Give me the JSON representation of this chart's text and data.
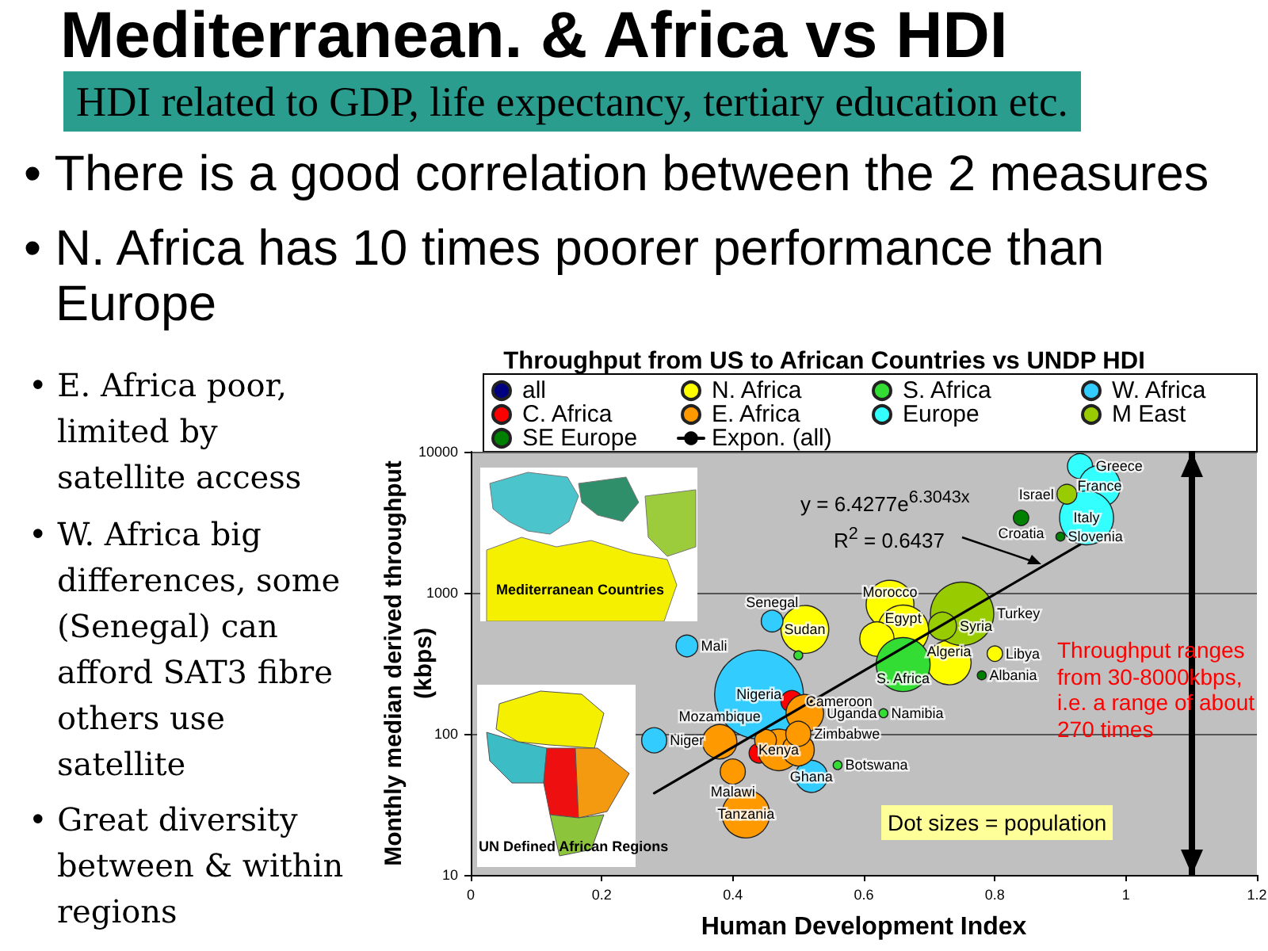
{
  "chart_data": {
    "type": "bubble",
    "title": "Throughput from US to African Countries vs UNDP HDI",
    "xlabel": "Human Development Index",
    "ylabel": "Monthly median derived throughput\n(kbps)",
    "xlim": [
      0,
      1.2
    ],
    "xticks": [
      0,
      0.2,
      0.4,
      0.6,
      0.8,
      1,
      1.2
    ],
    "ylim": [
      10,
      10000
    ],
    "yticks": [
      10,
      100,
      1000,
      10000
    ],
    "log": "y",
    "grid": "y",
    "legend": "top",
    "marker": "circle",
    "line_style": "solid",
    "series": [
      {
        "name": "all",
        "color": "#000080"
      },
      {
        "name": "N. Africa",
        "color": "#ffff00",
        "x": [
          0.64,
          0.66,
          0.62,
          0.73,
          0.8,
          0.51
        ],
        "values": [
          830,
          540,
          470,
          320,
          370,
          550
        ],
        "sizes": [
          0.29,
          0.33,
          0.15,
          0.25,
          0.03,
          0.29
        ]
      },
      {
        "name": "S. Africa",
        "color": "#33dd33",
        "x": [
          0.66,
          0.63,
          0.56,
          0.5
        ],
        "values": [
          310,
          140,
          60,
          360
        ],
        "sizes": [
          0.37,
          0.01,
          0.01,
          0.01
        ]
      },
      {
        "name": "W. Africa",
        "color": "#33ccff",
        "x": [
          0.44,
          0.52,
          0.28,
          0.33,
          0.46
        ],
        "values": [
          190,
          50,
          90,
          420,
          630
        ],
        "sizes": [
          1,
          0.13,
          0.08,
          0.06,
          0.06
        ]
      },
      {
        "name": "C. Africa",
        "color": "#ff0000",
        "x": [
          0.49,
          0.44
        ],
        "values": [
          170,
          73
        ],
        "sizes": [
          0.06,
          0.05
        ]
      },
      {
        "name": "E. Africa",
        "color": "#ff9900",
        "x": [
          0.42,
          0.47,
          0.51,
          0.5,
          0.38,
          0.5,
          0.4,
          0.45
        ],
        "values": [
          27,
          77,
          140,
          77,
          88,
          100,
          54,
          90
        ],
        "sizes": [
          0.29,
          0.22,
          0.18,
          0.13,
          0.15,
          0.08,
          0.08,
          0.06
        ]
      },
      {
        "name": "Europe",
        "color": "#33ffff",
        "x": [
          0.93,
          0.96,
          0.94
        ],
        "values": [
          7900,
          5700,
          3400
        ],
        "sizes": [
          0.08,
          0.22,
          0.37
        ]
      },
      {
        "name": "M East",
        "color": "#99cc00",
        "x": [
          0.91,
          0.75,
          0.72
        ],
        "values": [
          5000,
          710,
          580
        ],
        "sizes": [
          0.05,
          0.51,
          0.1
        ]
      },
      {
        "name": "SE Europe",
        "color": "#008000",
        "x": [
          0.84,
          0.9,
          0.78
        ],
        "values": [
          3400,
          2500,
          260
        ],
        "sizes": [
          0.03,
          0.01,
          0.01
        ]
      },
      {
        "name": "Expon. (all)",
        "type": "line",
        "color": "#000000",
        "marker": "none",
        "x": [
          0.28,
          0.93
        ],
        "values": [
          38,
          2200
        ]
      }
    ],
    "ref_lines": [
      {
        "axis": "x",
        "value": 1.1,
        "color": "#000000"
      }
    ],
    "annotations": [
      "Mediterranean. & Africa vs HDI",
      "HDI related to GDP, life expectancy, tertiary education etc.",
      "• There is a good correlation between the 2 measures",
      "• N. Africa has 10 times poorer performance than Europe",
      "• E. Africa poor, limited by satellite access",
      "• W. Africa big differences, some (Senegal) can afford SAT3 fibre others use satellite",
      "• Great diversity between & within regions",
      "Throughput ranges from 30-8000kbps, i.e. a range of about 270 times",
      "Dot sizes = population",
      "y = 6.4277e$^{6.3043x}$",
      "R$^{2}$ = 0.6437",
      "Mediterranean Countries",
      "UN Defined African Regions",
      {
        "text": "Nigeria",
        "x": 0.44,
        "y": 190
      },
      {
        "text": "Turkey",
        "x": 0.75,
        "y": 710
      },
      {
        "text": "S. Africa",
        "x": 0.66,
        "y": 310
      },
      {
        "text": "Italy",
        "x": 0.94,
        "y": 3400
      },
      {
        "text": "Egypt",
        "x": 0.66,
        "y": 540
      },
      {
        "text": "Morocco",
        "x": 0.64,
        "y": 830
      },
      {
        "text": "Tanzania",
        "x": 0.42,
        "y": 27
      },
      {
        "text": "Sudan",
        "x": 0.51,
        "y": 550
      },
      {
        "text": "Algeria",
        "x": 0.73,
        "y": 320
      },
      {
        "text": "France",
        "x": 0.96,
        "y": 5700
      },
      {
        "text": "Kenya",
        "x": 0.47,
        "y": 77
      },
      {
        "text": "Uganda",
        "x": 0.51,
        "y": 140
      },
      {
        "text": "Mozambique",
        "x": 0.38,
        "y": 88
      },
      {
        "text": "Ghana",
        "x": 0.52,
        "y": 50
      },
      {
        "text": "Syria",
        "x": 0.72,
        "y": 580
      },
      {
        "text": "Greece",
        "x": 0.93,
        "y": 7900
      },
      {
        "text": "Niger",
        "x": 0.28,
        "y": 90
      },
      {
        "text": "Zimbabwe",
        "x": 0.5,
        "y": 100
      },
      {
        "text": "Malawi",
        "x": 0.4,
        "y": 54
      },
      {
        "text": "Cameroon",
        "x": 0.49,
        "y": 170
      },
      {
        "text": "Mali",
        "x": 0.33,
        "y": 420
      },
      {
        "text": "Senegal",
        "x": 0.46,
        "y": 630
      },
      {
        "text": "Israel",
        "x": 0.91,
        "y": 5000
      },
      {
        "text": "Croatia",
        "x": 0.84,
        "y": 3400
      },
      {
        "text": "Libya",
        "x": 0.8,
        "y": 370
      },
      {
        "text": "Slovenia",
        "x": 0.9,
        "y": 2500
      },
      {
        "text": "Albania",
        "x": 0.78,
        "y": 260
      },
      {
        "text": "Namibia",
        "x": 0.63,
        "y": 140
      },
      {
        "text": "Botswana",
        "x": 0.56,
        "y": 60
      }
    ]
  }
}
